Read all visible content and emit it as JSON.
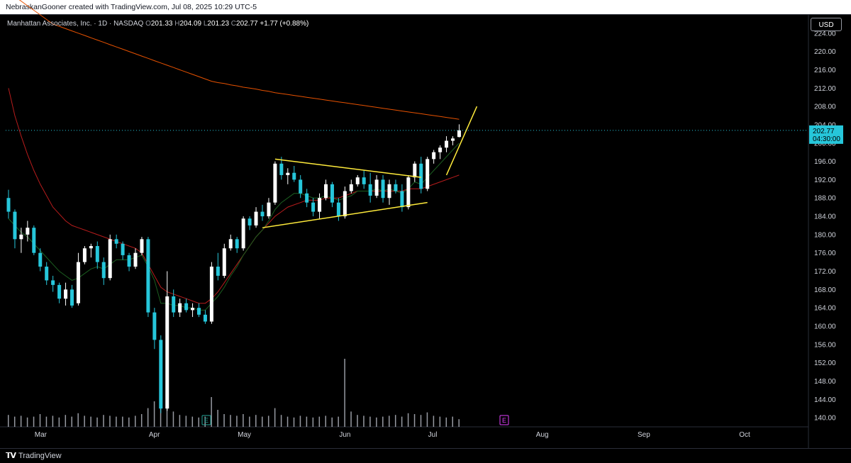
{
  "header": {
    "attribution": "NebraskanGooner created with TradingView.com, Jul 08, 2025 10:29 UTC-5"
  },
  "legend": {
    "symbol": "Manhattan Associates, Inc. · 1D · NASDAQ",
    "open_label": "O",
    "open": "201.33",
    "high_label": "H",
    "high": "204.09",
    "low_label": "L",
    "low": "201.23",
    "close_label": "C",
    "close": "202.77",
    "change": "+1.77 (+0.88%)"
  },
  "currency": "USD",
  "price_badge": {
    "price": "202.77",
    "countdown": "04:30:00"
  },
  "earnings_marker": "E",
  "footer": {
    "brand": "TradingView"
  },
  "colors": {
    "up": "#ffffff",
    "down": "#26c6da",
    "ema_fast": "#1b5e20",
    "ema_mid": "#b71c1c",
    "ema_slow": "#e65100",
    "trendline": "#ffeb3b",
    "earnings_future": "#e040fb",
    "earnings_past": "#26a69a"
  },
  "chart_data": {
    "type": "candlestick",
    "x_labels": [
      "Mar",
      "Apr",
      "May",
      "Jun",
      "Jul",
      "Aug",
      "Sep",
      "Oct"
    ],
    "y_ticks": [
      "224.00",
      "220.00",
      "216.00",
      "212.00",
      "208.00",
      "204.00",
      "200.00",
      "196.00",
      "192.00",
      "188.00",
      "184.00",
      "180.00",
      "176.00",
      "172.00",
      "168.00",
      "164.00",
      "160.00",
      "156.00",
      "152.00",
      "148.00",
      "144.00",
      "140.00"
    ],
    "ylim": [
      138,
      228
    ],
    "last_price": 202.77,
    "candles": [
      [
        188,
        189.8,
        183.5,
        185
      ],
      [
        185,
        185.5,
        177,
        179
      ],
      [
        179,
        181.5,
        176,
        180
      ],
      [
        180,
        183,
        178.5,
        181.5
      ],
      [
        181.5,
        182,
        175.5,
        176
      ],
      [
        176,
        177,
        172,
        173
      ],
      [
        173,
        174,
        169,
        170
      ],
      [
        170,
        171,
        167.5,
        169
      ],
      [
        169,
        169.5,
        165,
        166
      ],
      [
        166,
        169.5,
        164.5,
        168
      ],
      [
        168,
        169,
        164,
        164.5
      ],
      [
        165,
        176,
        164.5,
        174
      ],
      [
        174,
        177.5,
        173.5,
        177
      ],
      [
        177,
        178,
        175,
        177.5
      ],
      [
        177.5,
        178.5,
        172.5,
        174
      ],
      [
        174,
        175,
        169,
        170.5
      ],
      [
        170.5,
        180,
        170,
        179
      ],
      [
        179,
        180,
        177,
        178
      ],
      [
        178,
        178.5,
        174.5,
        175.5
      ],
      [
        175.5,
        176,
        172,
        173
      ],
      [
        173,
        177,
        172.5,
        176
      ],
      [
        176,
        179.5,
        175.5,
        179
      ],
      [
        179,
        179.5,
        162,
        163
      ],
      [
        163,
        164,
        155,
        157
      ],
      [
        157,
        158,
        141,
        142
      ],
      [
        142,
        172,
        141.5,
        166.5
      ],
      [
        166.5,
        168,
        162,
        163
      ],
      [
        163,
        166,
        162,
        165
      ],
      [
        165,
        166,
        163,
        163.5
      ],
      [
        163.5,
        165,
        162,
        164
      ],
      [
        164,
        165,
        162,
        162.5
      ],
      [
        162.5,
        163.5,
        160.5,
        161
      ],
      [
        161,
        174,
        160.5,
        173
      ],
      [
        173,
        176,
        170,
        171
      ],
      [
        171,
        178,
        170.5,
        177
      ],
      [
        177,
        180,
        176.5,
        179
      ],
      [
        179,
        179.5,
        176,
        177
      ],
      [
        177,
        184,
        176.5,
        183.5
      ],
      [
        183.5,
        184,
        181,
        182
      ],
      [
        182,
        186,
        181.5,
        185
      ],
      [
        185,
        186.5,
        183,
        184
      ],
      [
        184,
        188,
        183.5,
        187
      ],
      [
        187,
        196,
        186.5,
        195.5
      ],
      [
        195.5,
        197,
        192,
        193
      ],
      [
        193,
        194.5,
        191,
        193.5
      ],
      [
        193.5,
        195,
        191.5,
        192
      ],
      [
        192,
        193,
        188,
        189
      ],
      [
        189,
        190,
        186,
        187
      ],
      [
        187,
        188,
        184,
        185
      ],
      [
        185,
        189,
        183.5,
        188
      ],
      [
        188,
        192,
        187.5,
        191
      ],
      [
        191,
        191.5,
        186,
        187
      ],
      [
        187,
        188,
        183,
        184
      ],
      [
        184,
        190.5,
        183.5,
        189.5
      ],
      [
        189.5,
        192,
        189,
        191
      ],
      [
        191,
        193,
        190.5,
        192.5
      ],
      [
        192.5,
        194,
        190,
        191
      ],
      [
        191,
        193.5,
        187,
        188.5
      ],
      [
        188.5,
        193,
        188,
        192
      ],
      [
        192,
        193,
        187,
        188
      ],
      [
        188,
        192,
        186.5,
        191
      ],
      [
        191,
        192,
        189,
        189.5
      ],
      [
        189.5,
        191,
        185,
        186
      ],
      [
        186,
        193,
        185.5,
        192.5
      ],
      [
        192.5,
        196,
        191.5,
        195.5
      ],
      [
        195.5,
        197,
        189,
        190
      ],
      [
        190,
        197,
        189.5,
        196.5
      ],
      [
        196.5,
        198.5,
        195.5,
        198
      ],
      [
        198,
        199.5,
        196.5,
        199
      ],
      [
        199,
        201.5,
        198,
        200.5
      ],
      [
        200.5,
        201.5,
        199.5,
        201
      ],
      [
        201.33,
        204.09,
        201.23,
        202.77
      ]
    ],
    "volume": [
      14,
      12,
      13,
      11,
      12,
      15,
      12,
      13,
      11,
      14,
      12,
      16,
      13,
      12,
      11,
      14,
      13,
      12,
      12,
      11,
      13,
      15,
      22,
      30,
      38,
      40,
      18,
      14,
      13,
      12,
      11,
      12,
      35,
      20,
      15,
      14,
      13,
      15,
      12,
      14,
      12,
      13,
      22,
      14,
      12,
      11,
      13,
      12,
      11,
      12,
      13,
      11,
      12,
      80,
      18,
      14,
      13,
      12,
      11,
      12,
      13,
      14,
      12,
      16,
      15,
      14,
      17,
      13,
      12,
      11,
      12,
      9
    ],
    "ema_fast": [
      183.5,
      182,
      180.5,
      179.5,
      178,
      176.5,
      175,
      173.5,
      172,
      171,
      170,
      170.5,
      171.5,
      172.5,
      173,
      172.5,
      173.5,
      174.5,
      174.5,
      174.5,
      175,
      175.5,
      173,
      170,
      165,
      165,
      164.5,
      164.5,
      164,
      164,
      163.5,
      163.5,
      165,
      166.5,
      168.5,
      171,
      173,
      175.5,
      177.5,
      179.5,
      181,
      183,
      185.5,
      187,
      188,
      189,
      189,
      188.5,
      188,
      188,
      188.5,
      188,
      187.5,
      188,
      188.5,
      189.5,
      189.5,
      189.5,
      190,
      189.5,
      190,
      189.5,
      189,
      190,
      191.5,
      191,
      192.5,
      194,
      195.5,
      197,
      198.5,
      200
    ],
    "ema_mid": [
      212,
      206,
      201.5,
      197.5,
      194,
      191,
      188.5,
      186,
      184.5,
      183,
      182,
      181.5,
      181,
      180.5,
      180,
      179.5,
      179,
      178.5,
      178,
      177.5,
      177,
      176,
      173.5,
      171,
      168.5,
      167.5,
      167,
      166.5,
      166,
      165.5,
      165,
      165,
      166,
      167.5,
      169.5,
      171.5,
      173.5,
      175.5,
      177.5,
      179.5,
      181,
      182.5,
      184,
      185,
      186,
      186.5,
      187,
      187.5,
      187.5,
      187.5,
      188,
      188,
      188,
      188.5,
      189,
      189.5,
      189.5,
      189.5,
      189.5,
      189.5,
      189.5,
      189.5,
      189.5,
      190,
      190,
      190,
      190.5,
      191,
      191.5,
      192,
      192.5,
      193
    ],
    "ema_slow": [
      233,
      232,
      231,
      230,
      229,
      228,
      227,
      226,
      225.5,
      225,
      224.5,
      224,
      223.5,
      223,
      222.5,
      222,
      221.5,
      221,
      220.5,
      220,
      219.5,
      219,
      218.5,
      218,
      217.5,
      217,
      216.5,
      216,
      215.5,
      215,
      214.5,
      214,
      213.5,
      213.2,
      213,
      212.7,
      212.5,
      212.2,
      212,
      211.8,
      211.5,
      211.3,
      211,
      210.8,
      210.6,
      210.4,
      210.2,
      210,
      209.8,
      209.6,
      209.4,
      209.2,
      209,
      208.8,
      208.6,
      208.4,
      208.2,
      208,
      207.8,
      207.6,
      207.4,
      207.2,
      207,
      206.8,
      206.6,
      206.4,
      206.2,
      206,
      205.8,
      205.6,
      205.4,
      205.2
    ]
  }
}
